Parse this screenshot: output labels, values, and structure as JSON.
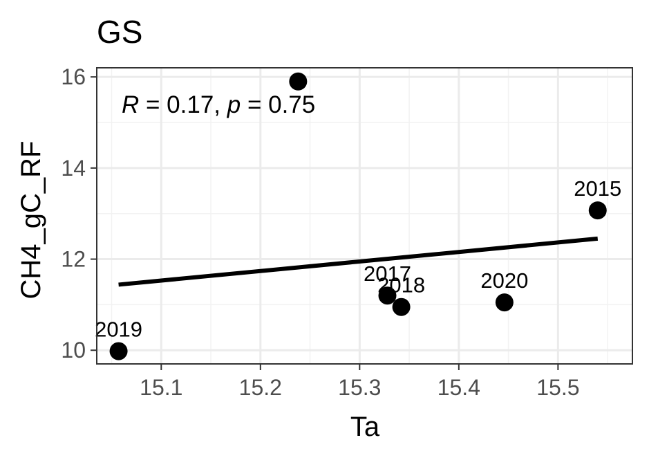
{
  "chart_data": {
    "type": "scatter",
    "title": "GS",
    "xlabel": "Ta",
    "ylabel": "CH4_gC_RF",
    "xlim": [
      15.035,
      15.575
    ],
    "ylim": [
      9.7,
      16.2
    ],
    "xticks": [
      15.1,
      15.2,
      15.3,
      15.4,
      15.5
    ],
    "yticks": [
      10,
      12,
      14,
      16
    ],
    "xtick_labels": [
      "15.1",
      "15.2",
      "15.3",
      "15.4",
      "15.5"
    ],
    "ytick_labels": [
      "10",
      "12",
      "14",
      "16"
    ],
    "grid": true,
    "points": [
      {
        "x": 15.057,
        "y": 9.98,
        "label": "2019"
      },
      {
        "x": 15.238,
        "y": 15.9,
        "label": ""
      },
      {
        "x": 15.328,
        "y": 11.2,
        "label": "2017"
      },
      {
        "x": 15.342,
        "y": 10.95,
        "label": "2018"
      },
      {
        "x": 15.446,
        "y": 11.05,
        "label": "2020"
      },
      {
        "x": 15.54,
        "y": 13.07,
        "label": "2015"
      }
    ],
    "regression": {
      "x": [
        15.057,
        15.54
      ],
      "y": [
        11.44,
        12.45
      ]
    },
    "annotation": {
      "r_symbol": "R",
      "r_value": " = 0.17, ",
      "p_symbol": "p",
      "p_value": " = 0.75"
    }
  }
}
